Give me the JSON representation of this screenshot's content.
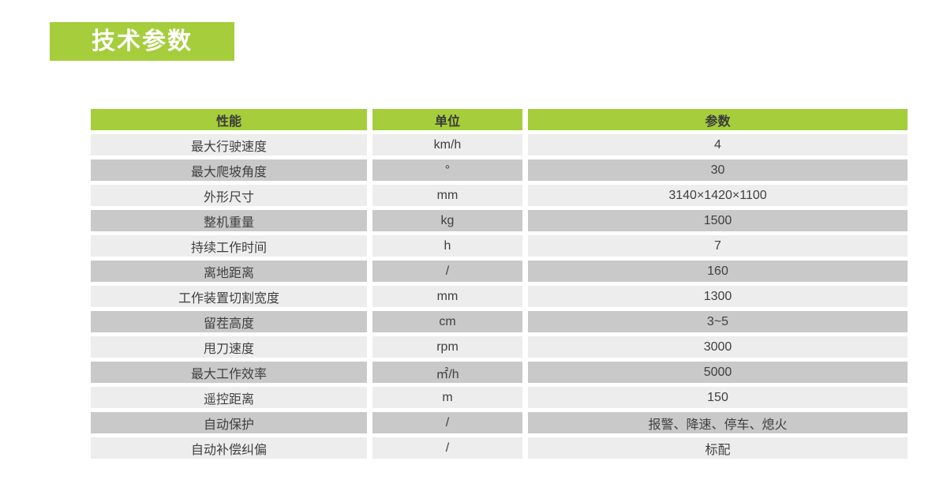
{
  "page": {
    "background": "#ffffff"
  },
  "title_badge": {
    "label": "技术参数",
    "background": "#A5CD3C",
    "text_color": "#ffffff"
  },
  "table": {
    "header_background": "#A5CD3C",
    "row_colors": [
      "#EDEDED",
      "#C9C9C9"
    ],
    "columns": [
      {
        "key": "name",
        "label": "性能"
      },
      {
        "key": "unit",
        "label": "单位"
      },
      {
        "key": "value",
        "label": "参数"
      }
    ],
    "rows": [
      {
        "name": "最大行驶速度",
        "unit": "km/h",
        "value": "4"
      },
      {
        "name": "最大爬坡角度",
        "unit": "°",
        "value": "30"
      },
      {
        "name": "外形尺寸",
        "unit": "mm",
        "value": "3140×1420×1100"
      },
      {
        "name": "整机重量",
        "unit": "kg",
        "value": "1500"
      },
      {
        "name": "持续工作时间",
        "unit": "h",
        "value": "7"
      },
      {
        "name": "离地距离",
        "unit": "/",
        "value": "160"
      },
      {
        "name": "工作装置切割宽度",
        "unit": "mm",
        "value": "1300"
      },
      {
        "name": "留茬高度",
        "unit": "cm",
        "value": "3~5"
      },
      {
        "name": "甩刀速度",
        "unit": "rpm",
        "value": "3000"
      },
      {
        "name": "最大工作效率",
        "unit": "㎡/h",
        "value": "5000"
      },
      {
        "name": "遥控距离",
        "unit": "m",
        "value": "150"
      },
      {
        "name": "自动保护",
        "unit": "/",
        "value": "报警、降速、停车、熄火"
      },
      {
        "name": "自动补偿纠偏",
        "unit": "/",
        "value": "标配"
      }
    ]
  }
}
